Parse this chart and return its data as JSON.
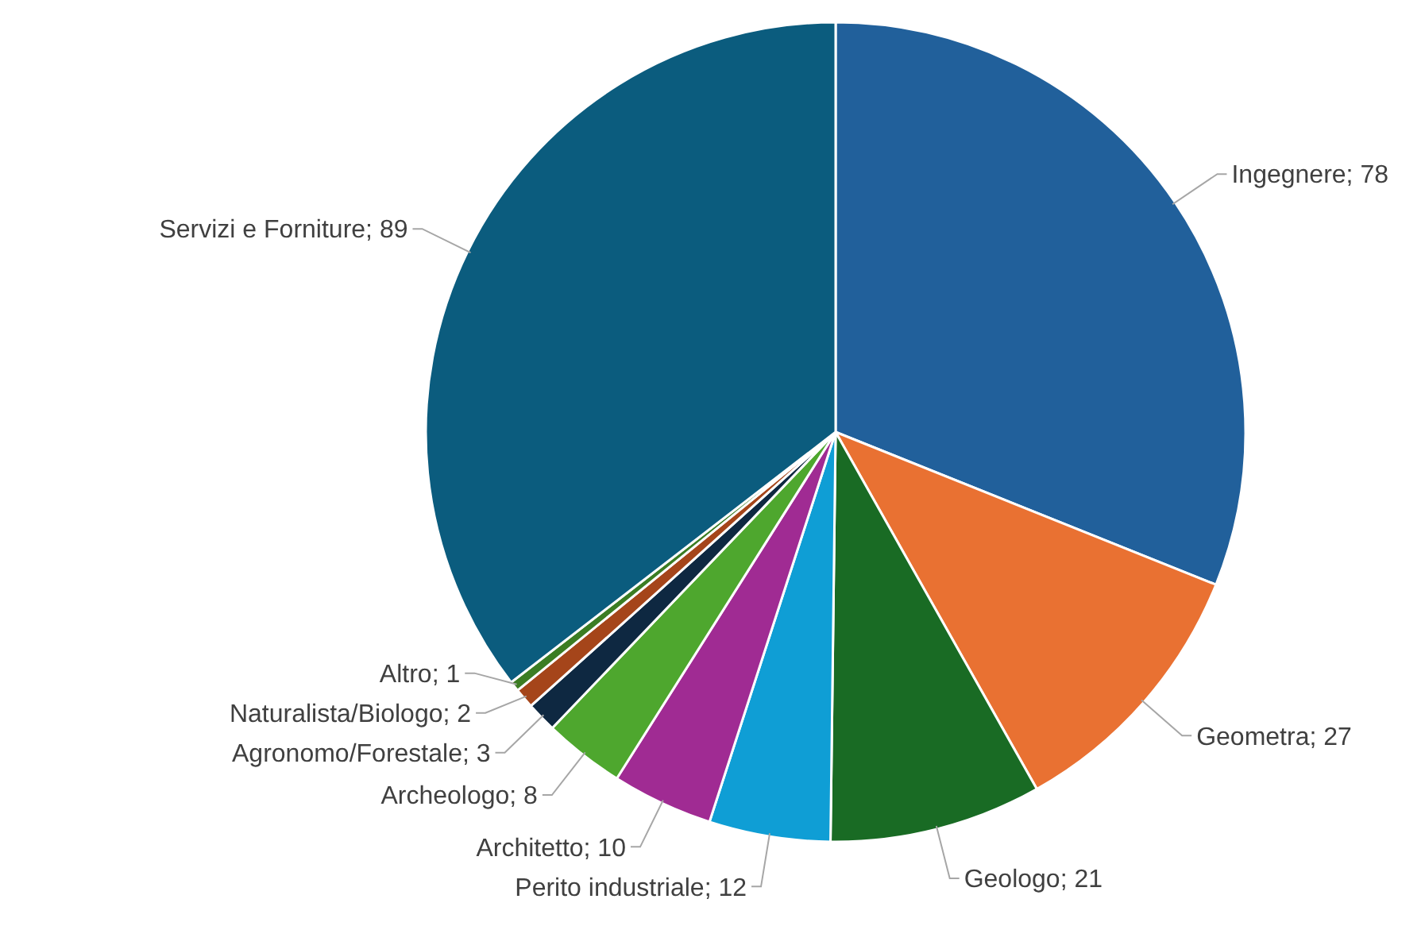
{
  "chart_data": {
    "type": "pie",
    "categories": [
      "Ingegnere",
      "Geometra",
      "Geologo",
      "Perito industriale",
      "Architetto",
      "Archeologo",
      "Agronomo/Forestale",
      "Naturalista/Biologo",
      "Altro",
      "Servizi e Forniture"
    ],
    "values": [
      78,
      27,
      21,
      12,
      10,
      8,
      3,
      2,
      1,
      89
    ],
    "value_labels": [
      "; 78",
      "; 27",
      "; 21",
      "; 12",
      "; 10",
      "; 8",
      "; 3",
      "; 2",
      "; 1",
      "; 89"
    ],
    "colors": [
      "#21609b",
      "#e97132",
      "#196b24",
      "#0f9ed5",
      "#a02b93",
      "#4ea72e",
      "#0e2841",
      "#a5451a",
      "#3b7d23",
      "#0b5c7e"
    ]
  }
}
